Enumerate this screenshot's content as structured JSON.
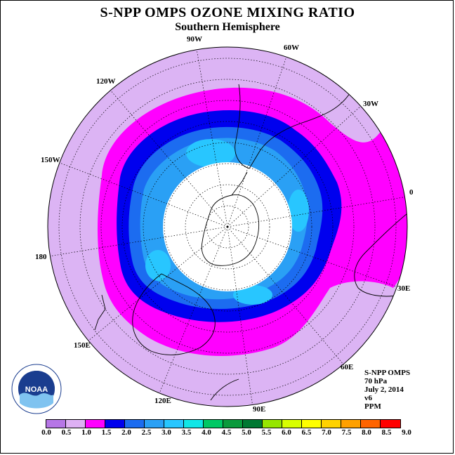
{
  "title": "S-NPP OMPS OZONE MIXING RATIO",
  "subtitle": "Southern Hemisphere",
  "longitude_labels": [
    {
      "text": "90W",
      "pos": "top"
    },
    {
      "text": "60W",
      "pos": "top-right-1"
    },
    {
      "text": "30W",
      "pos": "top-right-2"
    },
    {
      "text": "0",
      "pos": "right"
    },
    {
      "text": "30E",
      "pos": "lower-right"
    },
    {
      "text": "60E",
      "pos": "bottom-right"
    },
    {
      "text": "90E",
      "pos": "bottom"
    },
    {
      "text": "120E",
      "pos": "bottom-left-1"
    },
    {
      "text": "150E",
      "pos": "bottom-left-2"
    },
    {
      "text": "180",
      "pos": "left"
    },
    {
      "text": "150W",
      "pos": "upper-left-1"
    },
    {
      "text": "120W",
      "pos": "upper-left-2"
    }
  ],
  "info": {
    "instrument": "S-NPP OMPS",
    "level": "70 hPa",
    "date": "July 2, 2014",
    "version": "v6",
    "units": "PPM"
  },
  "colorbar": {
    "ticks": [
      "0.0",
      "0.5",
      "1.0",
      "1.5",
      "2.0",
      "2.5",
      "3.0",
      "3.5",
      "4.0",
      "4.5",
      "5.0",
      "5.5",
      "6.0",
      "6.5",
      "7.0",
      "7.5",
      "8.0",
      "8.5",
      "9.0"
    ],
    "colors": [
      "#b676e6",
      "#deb0f4",
      "#ff00ff",
      "#0000ee",
      "#1c6cf0",
      "#2aa0f5",
      "#28c6ff",
      "#10e6e6",
      "#00c864",
      "#0a9a3c",
      "#007832",
      "#96e600",
      "#d8ff00",
      "#ffff00",
      "#ffd200",
      "#ffa000",
      "#ff6400",
      "#ff0000",
      "#8c503c"
    ]
  },
  "map_colors": {
    "outer": "#dcb4f4",
    "ring_1_0": "#ff00ff",
    "ring_1_5": "#0000ee",
    "ring_2_0": "#1c6cf0",
    "ring_2_5": "#2aa0f5",
    "ring_3_0": "#28c6ff",
    "no_data": "#ffffff"
  },
  "logo": {
    "text": "NOAA"
  }
}
